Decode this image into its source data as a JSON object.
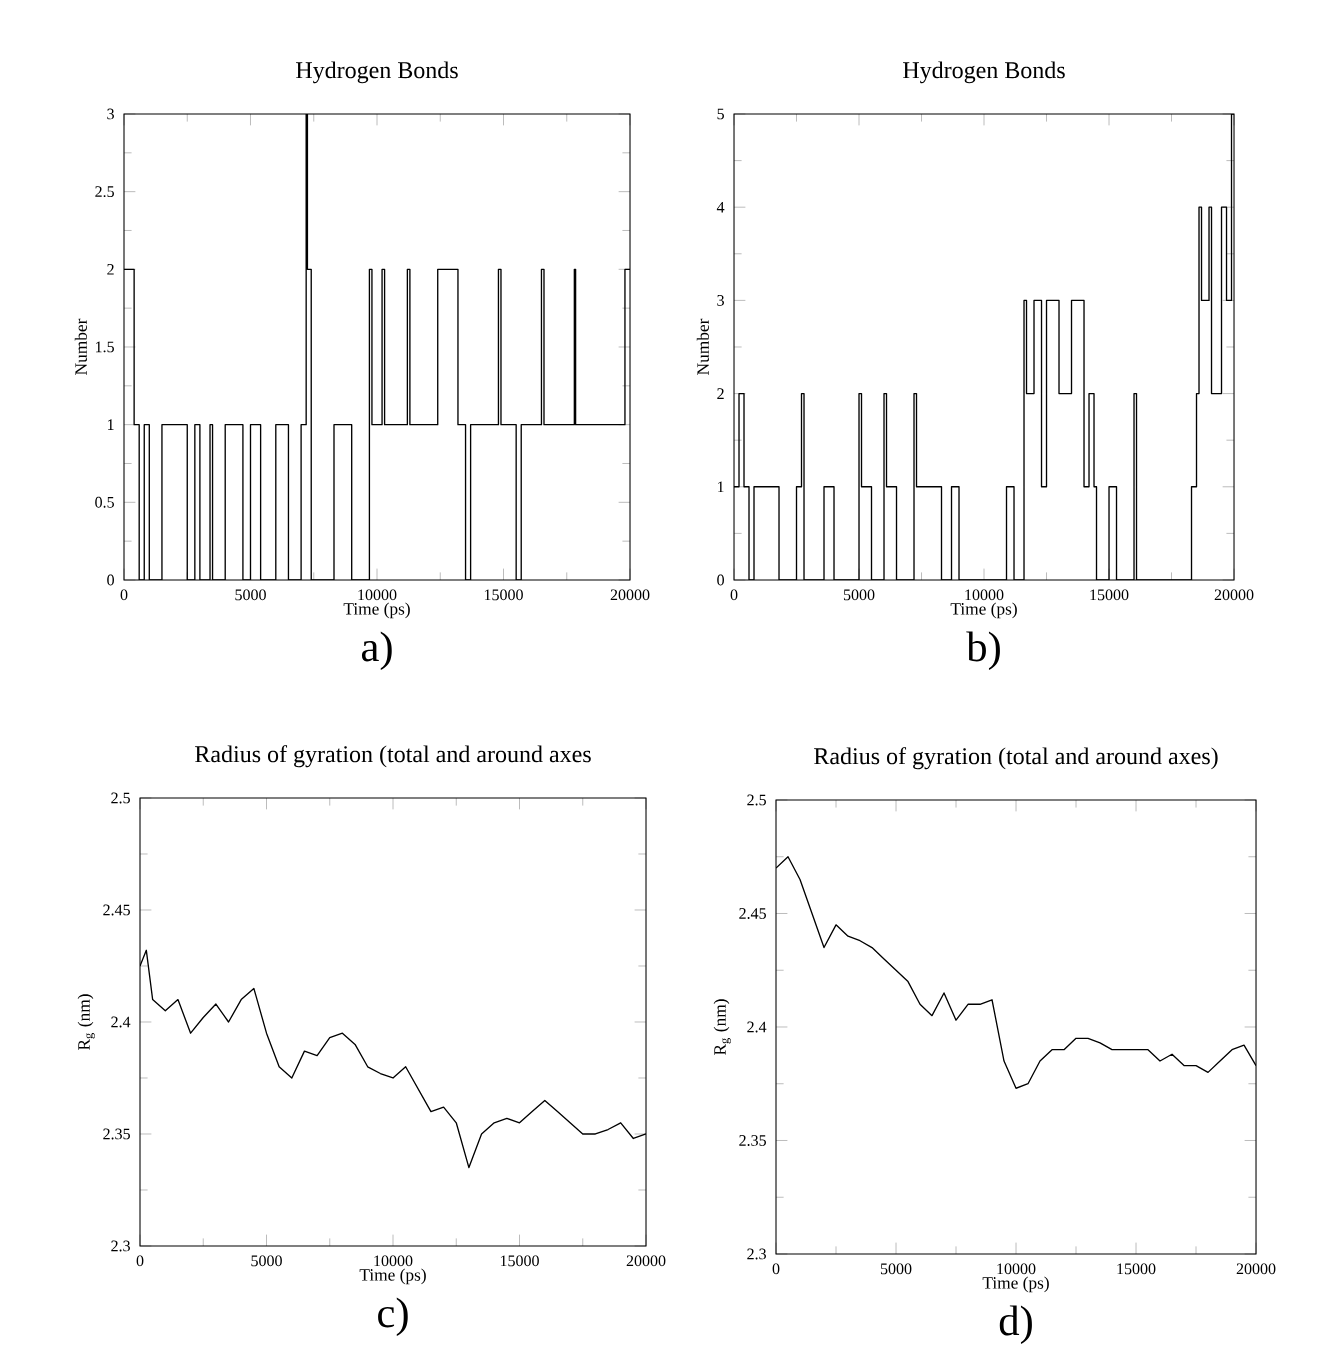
{
  "chart_data": [
    {
      "type": "step",
      "title": "Hydrogen Bonds",
      "xlabel": "Time (ps)",
      "ylabel": "Number",
      "annotations": [
        "a)"
      ],
      "color": "#000000",
      "x": [
        0,
        400,
        600,
        800,
        1000,
        1500,
        2500,
        2800,
        3000,
        3400,
        3500,
        4000,
        4700,
        5000,
        5400,
        6000,
        6500,
        7000,
        7200,
        7250,
        7400,
        8300,
        9000,
        9700,
        9800,
        10200,
        10300,
        11000,
        11200,
        11300,
        12400,
        13200,
        13500,
        13700,
        14800,
        14900,
        15500,
        15700,
        16500,
        16600,
        17800,
        17850,
        19800,
        20000
      ],
      "values": [
        2,
        1,
        0,
        1,
        0,
        1,
        0,
        1,
        0,
        1,
        0,
        1,
        0,
        1,
        0,
        1,
        0,
        1,
        3,
        2,
        0,
        1,
        0,
        2,
        1,
        2,
        1,
        1,
        2,
        1,
        2,
        1,
        0,
        1,
        2,
        1,
        0,
        1,
        2,
        1,
        2,
        1,
        2,
        2
      ],
      "xlim": [
        0,
        20000
      ],
      "ylim": [
        0,
        3
      ],
      "xticks": [
        0,
        5000,
        10000,
        15000,
        20000
      ],
      "yticks": [
        0,
        0.5,
        1,
        1.5,
        2,
        2.5,
        3
      ]
    },
    {
      "type": "step",
      "title": "Hydrogen Bonds",
      "xlabel": "Time (ps)",
      "ylabel": "Number",
      "annotations": [
        "b)"
      ],
      "color": "#000000",
      "x": [
        0,
        200,
        400,
        600,
        800,
        1800,
        2500,
        2700,
        2800,
        3600,
        4000,
        5000,
        5100,
        5500,
        6000,
        6100,
        6500,
        7200,
        7300,
        8300,
        8700,
        9000,
        10900,
        11200,
        11600,
        11700,
        12000,
        12300,
        12500,
        13000,
        13500,
        14000,
        14200,
        14400,
        14500,
        15000,
        15300,
        16000,
        16100,
        18300,
        18500,
        18600,
        18700,
        19000,
        19100,
        19500,
        19700,
        19900,
        20000
      ],
      "values": [
        1,
        2,
        1,
        0,
        1,
        0,
        1,
        2,
        0,
        1,
        0,
        2,
        1,
        0,
        2,
        1,
        0,
        2,
        1,
        0,
        1,
        0,
        1,
        0,
        3,
        2,
        3,
        1,
        3,
        2,
        3,
        1,
        2,
        1,
        0,
        1,
        0,
        2,
        0,
        1,
        2,
        4,
        3,
        4,
        2,
        4,
        3,
        5,
        5
      ],
      "xlim": [
        0,
        20000
      ],
      "ylim": [
        0,
        5
      ],
      "xticks": [
        0,
        5000,
        10000,
        15000,
        20000
      ],
      "yticks": [
        0,
        1,
        2,
        3,
        4,
        5
      ]
    },
    {
      "type": "line",
      "title": "Radius of gyration (total and around axes",
      "xlabel": "Time (ps)",
      "ylabel": "R$_{g}$ (nm)",
      "annotations": [
        "c)"
      ],
      "color": "#000000",
      "x": [
        0,
        250,
        500,
        1000,
        1500,
        2000,
        2500,
        3000,
        3500,
        4000,
        4500,
        5000,
        5500,
        6000,
        6500,
        7000,
        7500,
        8000,
        8500,
        9000,
        9500,
        10000,
        10500,
        11000,
        11500,
        12000,
        12500,
        13000,
        13500,
        14000,
        14500,
        15000,
        15500,
        16000,
        16500,
        17000,
        17500,
        18000,
        18500,
        19000,
        19500,
        20000
      ],
      "values": [
        2.425,
        2.432,
        2.41,
        2.405,
        2.41,
        2.395,
        2.402,
        2.408,
        2.4,
        2.41,
        2.415,
        2.395,
        2.38,
        2.375,
        2.387,
        2.385,
        2.393,
        2.395,
        2.39,
        2.38,
        2.377,
        2.375,
        2.38,
        2.37,
        2.36,
        2.362,
        2.355,
        2.335,
        2.35,
        2.355,
        2.357,
        2.355,
        2.36,
        2.365,
        2.36,
        2.355,
        2.35,
        2.35,
        2.352,
        2.355,
        2.348,
        2.35
      ],
      "xlim": [
        0,
        20000
      ],
      "ylim": [
        2.3,
        2.5
      ],
      "xticks": [
        0,
        5000,
        10000,
        15000,
        20000
      ],
      "yticks": [
        2.3,
        2.35,
        2.4,
        2.45,
        2.5
      ]
    },
    {
      "type": "line",
      "title": "Radius of gyration (total and around axes)",
      "xlabel": "Time (ps)",
      "ylabel": "R$_{g}$ (nm)",
      "annotations": [
        "d)"
      ],
      "color": "#000000",
      "x": [
        0,
        500,
        1000,
        1500,
        2000,
        2500,
        3000,
        3500,
        4000,
        4500,
        5000,
        5500,
        6000,
        6500,
        7000,
        7500,
        8000,
        8500,
        9000,
        9500,
        10000,
        10500,
        11000,
        11500,
        12000,
        12500,
        13000,
        13500,
        14000,
        14500,
        15000,
        15500,
        16000,
        16500,
        17000,
        17500,
        18000,
        18500,
        19000,
        19500,
        20000
      ],
      "values": [
        2.47,
        2.475,
        2.465,
        2.45,
        2.435,
        2.445,
        2.44,
        2.438,
        2.435,
        2.43,
        2.425,
        2.42,
        2.41,
        2.405,
        2.415,
        2.403,
        2.41,
        2.41,
        2.412,
        2.385,
        2.373,
        2.375,
        2.385,
        2.39,
        2.39,
        2.395,
        2.395,
        2.393,
        2.39,
        2.39,
        2.39,
        2.39,
        2.385,
        2.388,
        2.383,
        2.383,
        2.38,
        2.385,
        2.39,
        2.392,
        2.383
      ],
      "xlim": [
        0,
        20000
      ],
      "ylim": [
        2.3,
        2.5
      ],
      "xticks": [
        0,
        5000,
        10000,
        15000,
        20000
      ],
      "yticks": [
        2.3,
        2.35,
        2.4,
        2.45,
        2.5
      ]
    }
  ]
}
